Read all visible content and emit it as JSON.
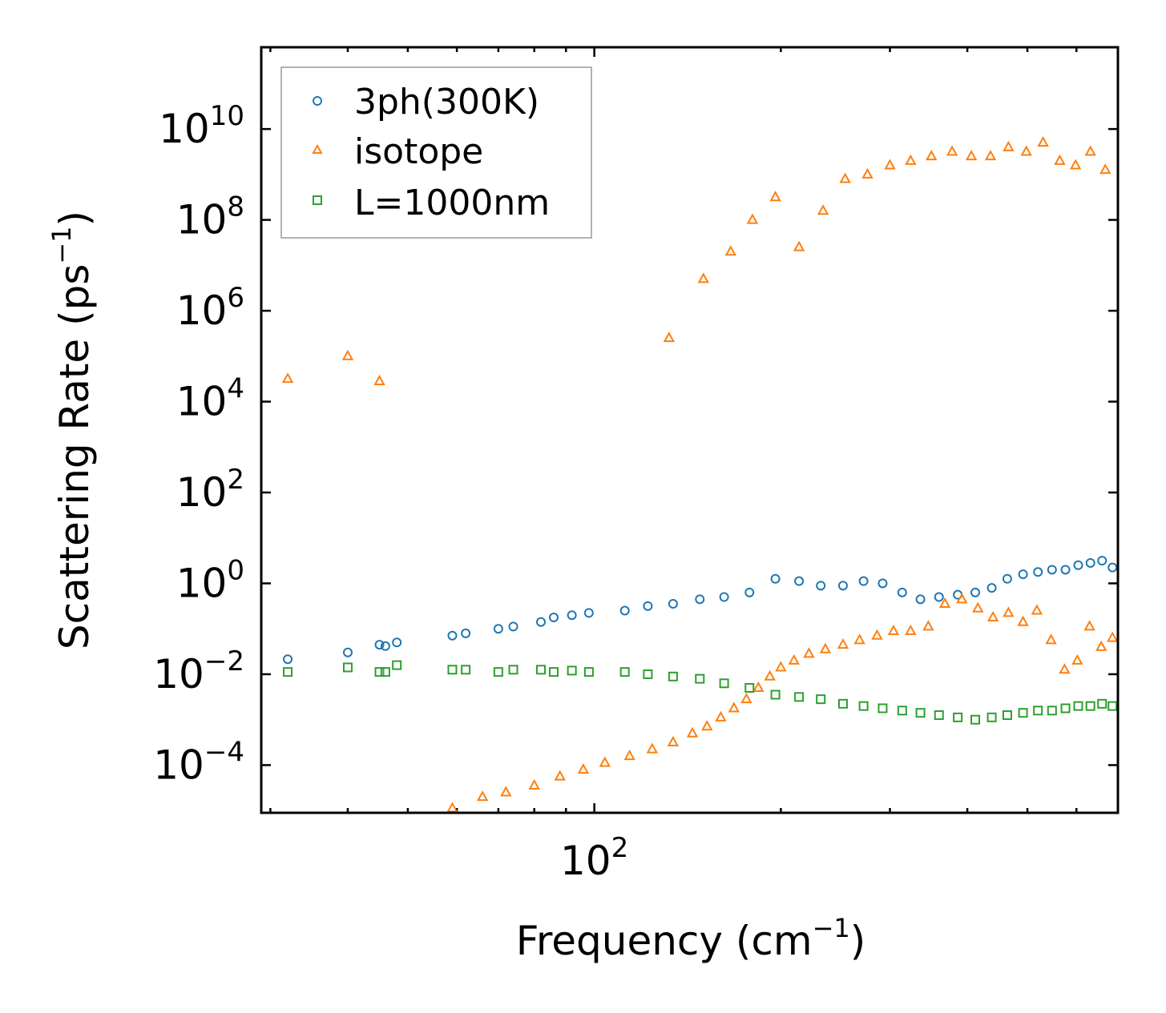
{
  "chart_data": {
    "type": "scatter",
    "title": "",
    "xlabel": "Frequency (cm",
    "xlabel_sup": "−1",
    "xlabel_tail": ")",
    "ylabel": "Scattering Rate (ps",
    "ylabel_sup": "−1",
    "ylabel_tail": ")",
    "xscale": "log",
    "yscale": "log",
    "xlim": [
      29,
      700
    ],
    "ylim_exp": [
      -5.05,
      11.8
    ],
    "x_major_ticks": [
      {
        "value": 100,
        "base": "10",
        "exp": "2"
      }
    ],
    "y_major_ticks": [
      {
        "exp_value": -4,
        "base": "10",
        "exp": "−4"
      },
      {
        "exp_value": -2,
        "base": "10",
        "exp": "−2"
      },
      {
        "exp_value": 0,
        "base": "10",
        "exp": "0"
      },
      {
        "exp_value": 2,
        "base": "10",
        "exp": "2"
      },
      {
        "exp_value": 4,
        "base": "10",
        "exp": "4"
      },
      {
        "exp_value": 6,
        "base": "10",
        "exp": "6"
      },
      {
        "exp_value": 8,
        "base": "10",
        "exp": "8"
      },
      {
        "exp_value": 10,
        "base": "10",
        "exp": "10"
      }
    ],
    "legend_position": "top-left",
    "series": [
      {
        "name": "3ph(300K)",
        "marker": "circle",
        "color": "#1f77b4",
        "x": [
          32,
          40,
          45,
          46,
          48,
          59,
          62,
          70,
          74,
          82,
          86,
          92,
          98,
          112,
          122,
          134,
          148,
          162,
          178,
          196,
          214,
          232,
          252,
          272,
          292,
          314,
          336,
          360,
          386,
          412,
          438,
          464,
          492,
          520,
          548,
          576,
          604,
          632,
          660,
          686
        ],
        "y_exp": [
          -1.67,
          -1.52,
          -1.35,
          -1.38,
          -1.3,
          -1.15,
          -1.1,
          -1.0,
          -0.95,
          -0.85,
          -0.75,
          -0.7,
          -0.65,
          -0.6,
          -0.5,
          -0.45,
          -0.35,
          -0.3,
          -0.2,
          0.1,
          0.05,
          -0.05,
          -0.05,
          0.05,
          0.0,
          -0.2,
          -0.35,
          -0.3,
          -0.25,
          -0.2,
          -0.1,
          0.1,
          0.2,
          0.25,
          0.3,
          0.3,
          0.4,
          0.45,
          0.5,
          0.35
        ]
      },
      {
        "name": "isotope",
        "marker": "triangle",
        "color": "#ff7f0e",
        "x": [
          32,
          40,
          45,
          59,
          66,
          72,
          80,
          88,
          96,
          104,
          114,
          124,
          134,
          144,
          152,
          160,
          168,
          176,
          184,
          192,
          200,
          210,
          222,
          236,
          252,
          268,
          286,
          304,
          324,
          346,
          368,
          392,
          416,
          440,
          466,
          492,
          518,
          546,
          574,
          602,
          630,
          658,
          686,
          132,
          150,
          166,
          180,
          196,
          214,
          234,
          254,
          276,
          300,
          324,
          350,
          378,
          406,
          436,
          466,
          498,
          530,
          564,
          598,
          632,
          668
        ],
        "y_exp": [
          4.5,
          5.0,
          4.45,
          -4.95,
          -4.7,
          -4.6,
          -4.45,
          -4.25,
          -4.1,
          -3.95,
          -3.8,
          -3.65,
          -3.5,
          -3.3,
          -3.15,
          -2.95,
          -2.75,
          -2.55,
          -2.3,
          -2.05,
          -1.85,
          -1.7,
          -1.55,
          -1.45,
          -1.35,
          -1.25,
          -1.15,
          -1.05,
          -1.05,
          -0.95,
          -0.45,
          -0.35,
          -0.55,
          -0.75,
          -0.65,
          -0.85,
          -0.6,
          -1.25,
          -1.9,
          -1.7,
          -0.95,
          -1.4,
          -1.2,
          5.4,
          6.7,
          7.3,
          8.0,
          8.5,
          7.4,
          8.2,
          8.9,
          9.0,
          9.2,
          9.3,
          9.4,
          9.5,
          9.4,
          9.4,
          9.6,
          9.5,
          9.7,
          9.3,
          9.2,
          9.5,
          9.1
        ]
      },
      {
        "name": "L=1000nm",
        "marker": "square",
        "color": "#2ca02c",
        "x": [
          32,
          40,
          45,
          46,
          48,
          59,
          62,
          70,
          74,
          82,
          86,
          92,
          98,
          112,
          122,
          134,
          148,
          162,
          178,
          196,
          214,
          232,
          252,
          272,
          292,
          314,
          336,
          360,
          386,
          412,
          438,
          464,
          492,
          520,
          548,
          576,
          604,
          632,
          660,
          686
        ],
        "y_exp": [
          -1.95,
          -1.85,
          -1.95,
          -1.95,
          -1.8,
          -1.9,
          -1.9,
          -1.95,
          -1.9,
          -1.9,
          -1.95,
          -1.92,
          -1.95,
          -1.95,
          -2.0,
          -2.05,
          -2.1,
          -2.2,
          -2.3,
          -2.45,
          -2.5,
          -2.55,
          -2.65,
          -2.7,
          -2.75,
          -2.8,
          -2.85,
          -2.9,
          -2.95,
          -3.0,
          -2.95,
          -2.9,
          -2.85,
          -2.8,
          -2.8,
          -2.75,
          -2.7,
          -2.7,
          -2.65,
          -2.7
        ]
      }
    ]
  }
}
